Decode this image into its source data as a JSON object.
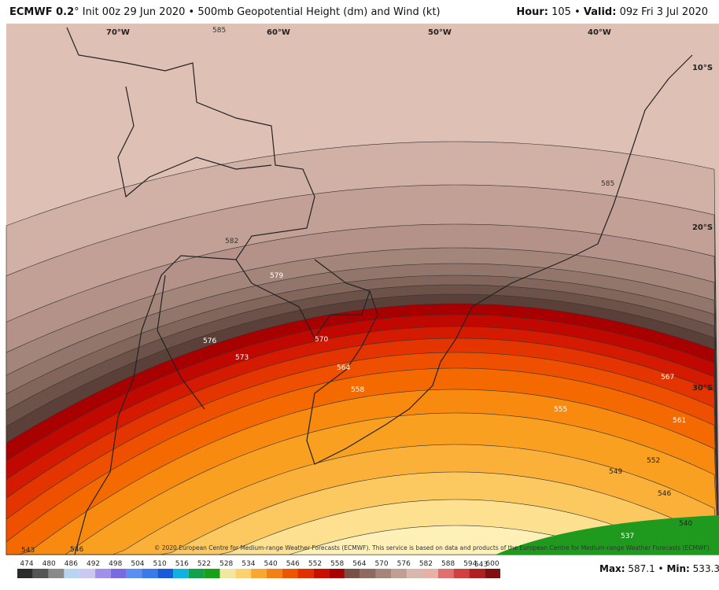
{
  "header": {
    "model": "ECMWF 0.2",
    "title": "° Init 00z 29 Jun 2020 • 500mb Geopotential Height (dm) and Wind (kt)",
    "hour_label": "Hour:",
    "hour": " 105 • ",
    "valid_label": "Valid:",
    "valid": " 09z Fri 3 Jul 2020"
  },
  "map": {
    "longitudes": [
      "70°W",
      "60°W",
      "50°W",
      "40°W"
    ],
    "latitudes": [
      "10°S",
      "20°S",
      "30°S"
    ],
    "contour_labels": [
      "585",
      "585",
      "582",
      "579",
      "576",
      "573",
      "570",
      "564",
      "558",
      "555",
      "567",
      "561",
      "552",
      "549",
      "546",
      "540",
      "537",
      "543",
      "546",
      "543"
    ],
    "credit": "© 2020 European Centre for Medium-range Weather Forecasts (ECMWF). This service is based on data and products of the European Centre for Medium-range Weather Forecasts (ECMWF)."
  },
  "colorbar": {
    "labels": [
      "474",
      "480",
      "486",
      "492",
      "498",
      "504",
      "510",
      "516",
      "522",
      "528",
      "534",
      "540",
      "546",
      "552",
      "558",
      "564",
      "570",
      "576",
      "582",
      "588",
      "594",
      "600"
    ],
    "colors": [
      "#2b2b2b",
      "#555555",
      "#8a8a8a",
      "#b8d4f0",
      "#c8c8f0",
      "#a090e8",
      "#7a6adf",
      "#5a8ef0",
      "#3a7ae8",
      "#1a5ad8",
      "#10b0e0",
      "#10a050",
      "#18a018",
      "#f0e8a0",
      "#fbd070",
      "#f8a830",
      "#f38015",
      "#ee5500",
      "#e03000",
      "#c81000",
      "#a80000",
      "#7a5046",
      "#8d6b60",
      "#a5857a",
      "#bf9f94",
      "#d8b8ae",
      "#e8b0a8",
      "#e07070",
      "#d04040",
      "#b02020",
      "#801010"
    ]
  },
  "footer": {
    "max_label": "Max:",
    "max": " 587.1 • ",
    "min_label": "Min:",
    "min": " 533.3"
  }
}
